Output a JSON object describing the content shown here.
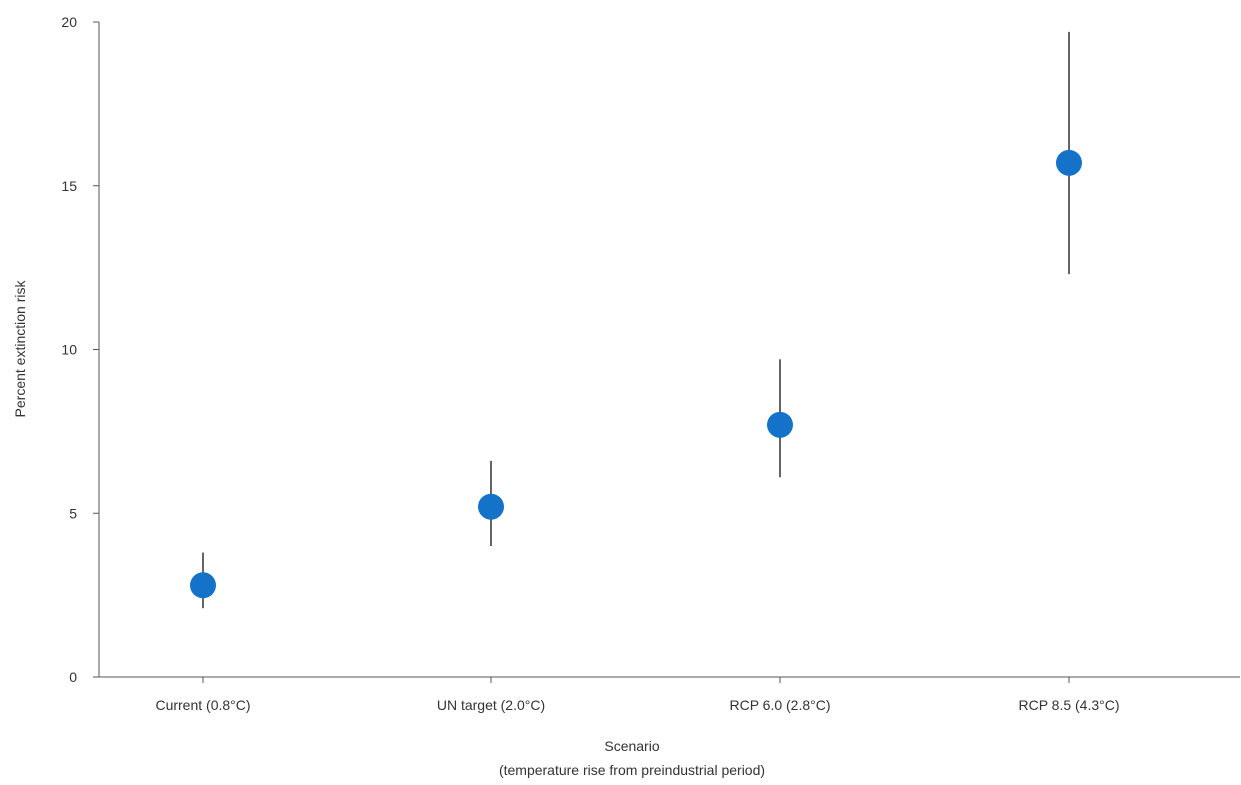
{
  "chart_data": {
    "type": "scatter",
    "categories": [
      "Current (0.8°C)",
      "UN target (2.0°C)",
      "RCP 6.0 (2.8°C)",
      "RCP 8.5 (4.3°C)"
    ],
    "values": [
      2.8,
      5.2,
      7.7,
      15.7
    ],
    "error_low": [
      2.1,
      4.0,
      6.1,
      12.3
    ],
    "error_high": [
      3.8,
      6.6,
      9.7,
      19.7
    ],
    "xlabel": "Scenario",
    "xlabel_sub": "(temperature rise from preindustrial period)",
    "ylabel": "Percent extinction risk",
    "ylim": [
      0,
      20
    ],
    "yticks": [
      0,
      5,
      10,
      15,
      20
    ],
    "grid": false,
    "colors": {
      "point": "#1473c9",
      "errorbar": "#222222",
      "axis": "#555555",
      "text": "#333333"
    }
  }
}
